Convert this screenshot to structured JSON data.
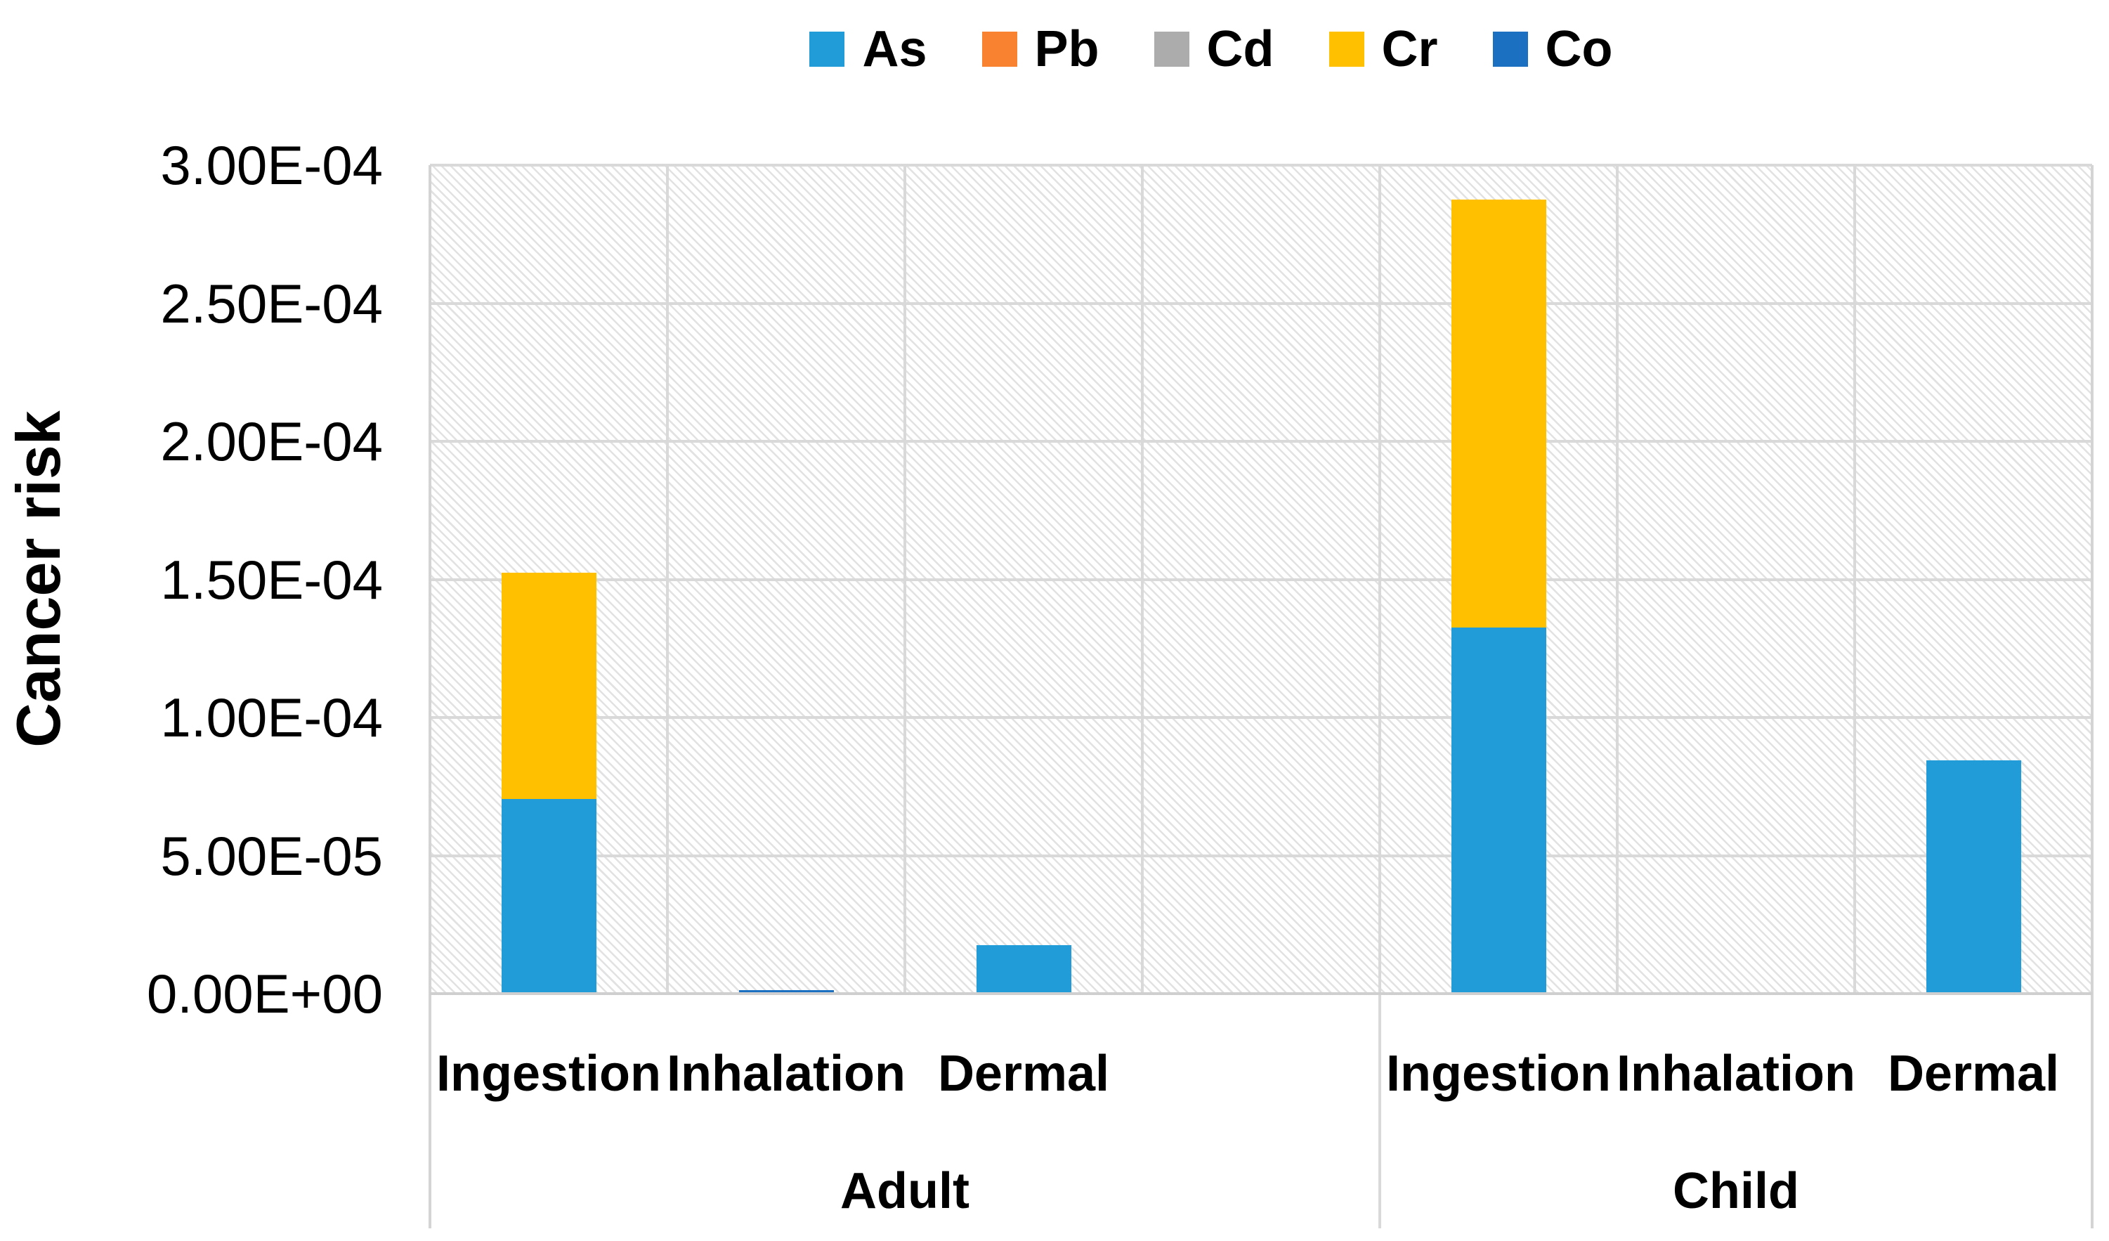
{
  "chart_data": {
    "type": "bar",
    "stacked": true,
    "title": "",
    "xlabel": "",
    "ylabel": "Cancer risk",
    "ylim": [
      0,
      0.0003
    ],
    "yticks": [
      "0.00E+00",
      "5.00E-05",
      "1.00E-04",
      "1.50E-04",
      "2.00E-04",
      "2.50E-04",
      "3.00E-04"
    ],
    "grid": true,
    "legend_position": "top",
    "plot_background": "light-diagonal-hatch",
    "groups": [
      {
        "label": "Adult",
        "categories": [
          "Ingestion",
          "Inhalation",
          "Dermal"
        ]
      },
      {
        "label": "Child",
        "categories": [
          "Ingestion",
          "Inhalation",
          "Dermal"
        ]
      }
    ],
    "series": [
      {
        "name": "As",
        "color": "#219CD8",
        "values": [
          7e-05,
          0,
          1.7e-05,
          0.000132,
          0,
          8.4e-05
        ]
      },
      {
        "name": "Pb",
        "color": "#F8822F",
        "values": [
          0,
          0,
          0,
          0,
          0,
          0
        ]
      },
      {
        "name": "Cd",
        "color": "#ACACAC",
        "values": [
          0,
          0,
          0,
          0,
          0,
          0
        ]
      },
      {
        "name": "Cr",
        "color": "#FFC000",
        "values": [
          8.2e-05,
          0,
          0,
          0.000155,
          0,
          0
        ]
      },
      {
        "name": "Co",
        "color": "#1C70C1",
        "values": [
          0,
          8e-07,
          0,
          0,
          0,
          0
        ]
      }
    ]
  }
}
